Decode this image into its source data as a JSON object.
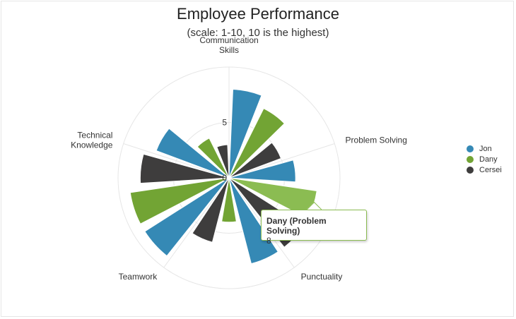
{
  "chart_data": {
    "type": "polar-bar",
    "title": "Employee Performance",
    "subtitle": "(scale: 1-10, 10 is the highest)",
    "categories": [
      "Communication Skills",
      "Problem Solving",
      "Punctuality",
      "Teamwork",
      "Technical Knowledge"
    ],
    "category_lines": [
      [
        "Communication",
        "Skills"
      ],
      [
        "Problem Solving"
      ],
      [
        "Punctuality"
      ],
      [
        "Teamwork"
      ],
      [
        "Technical",
        "Knowledge"
      ]
    ],
    "radial_axis": {
      "min": 0,
      "max": 10,
      "tick_labels": [
        "0",
        "5"
      ]
    },
    "series": [
      {
        "name": "Jon",
        "color": "#3589b5",
        "values": [
          8,
          6,
          8,
          9,
          7
        ]
      },
      {
        "name": "Dany",
        "color": "#72a434",
        "values": [
          7,
          8,
          4,
          9,
          4
        ]
      },
      {
        "name": "Cersei",
        "color": "#3e3d3d",
        "values": [
          5,
          8,
          6,
          8,
          3
        ]
      }
    ],
    "legend_position": "right",
    "grid": true
  },
  "tooltip": {
    "title": "Dany (Problem Solving)",
    "value": "8",
    "highlight_color": "#8bbc52"
  }
}
